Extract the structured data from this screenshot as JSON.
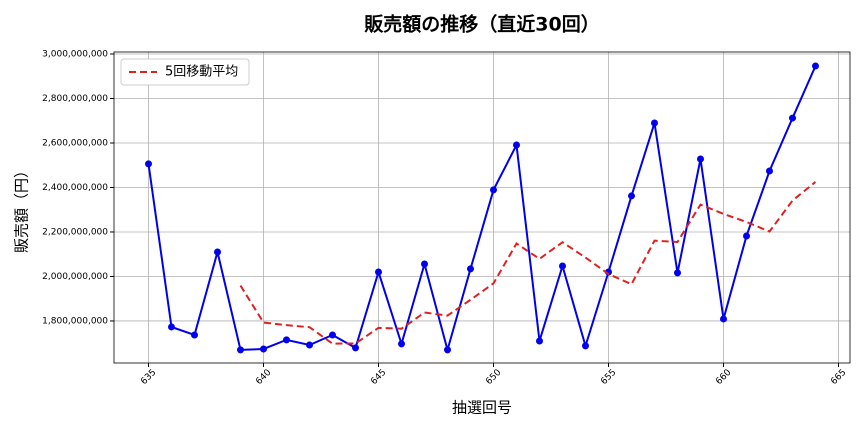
{
  "chart_data": {
    "type": "line",
    "title": "販売額の推移（直近30回）",
    "xlabel": "抽選回号",
    "ylabel": "販売額（円）",
    "x": [
      635,
      636,
      637,
      638,
      639,
      640,
      641,
      642,
      643,
      644,
      645,
      646,
      647,
      648,
      649,
      650,
      651,
      652,
      653,
      654,
      655,
      656,
      657,
      658,
      659,
      660,
      661,
      662,
      663,
      664
    ],
    "series": [
      {
        "color": "#0000ee",
        "markers": true,
        "dashed": false,
        "values": [
          2506000000,
          1773000000,
          1737000000,
          2110000000,
          1670000000,
          1674000000,
          1715000000,
          1692000000,
          1737000000,
          1679000000,
          2020000000,
          1697000000,
          2056000000,
          1670000000,
          2034000000,
          2389000000,
          2591000000,
          1710000000,
          2047000000,
          1688000000,
          2020000000,
          2362000000,
          2690000000,
          2016000000,
          2528000000,
          1809000000,
          2182000000,
          2474000000,
          2712000000,
          2946000000
        ]
      },
      {
        "name": "5回移動平均",
        "color": "#dd2222",
        "markers": false,
        "dashed": true,
        "values": [
          null,
          null,
          null,
          null,
          1959000000,
          1793000000,
          1781000000,
          1772000000,
          1698000000,
          1699000000,
          1769000000,
          1765000000,
          1838000000,
          1824000000,
          1895000000,
          1969000000,
          2148000000,
          2079000000,
          2154000000,
          2085000000,
          2011000000,
          1965000000,
          2161000000,
          2155000000,
          2323000000,
          2281000000,
          2245000000,
          2202000000,
          2341000000,
          2425000000
        ]
      }
    ],
    "xlim": [
      633.5,
      665.5
    ],
    "ylim": [
      1611000000,
      3009000000
    ],
    "xticks": [
      635,
      640,
      645,
      650,
      655,
      660,
      665
    ],
    "yticks": [
      {
        "value": 1800000000,
        "label": "1,800,000,000"
      },
      {
        "value": 2000000000,
        "label": "2,000,000,000"
      },
      {
        "value": 2200000000,
        "label": "2,200,000,000"
      },
      {
        "value": 2400000000,
        "label": "2,400,000,000"
      },
      {
        "value": 2600000000,
        "label": "2,600,000,000"
      },
      {
        "value": 2800000000,
        "label": "2,800,000,000"
      },
      {
        "value": 3000000000,
        "label": "3,000,000,000"
      }
    ],
    "grid": true,
    "legend": "upper left"
  }
}
